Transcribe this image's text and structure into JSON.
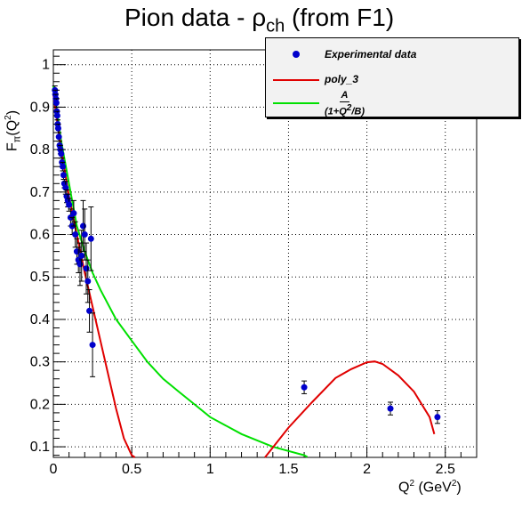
{
  "chart_data": {
    "type": "scatter",
    "title": "Pion data - ρ",
    "title_subscript": "ch",
    "title_suffix": " (from F1)",
    "xlabel": "Q",
    "xlabel_sup": "2",
    "xlabel_unit": " (GeV",
    "xlabel_unit_sup": "2",
    "xlabel_close": ")",
    "ylabel": "F",
    "ylabel_sub": "π",
    "ylabel_arg": "(Q",
    "ylabel_arg_sup": "2",
    "ylabel_close": ")",
    "xlim": [
      0,
      2.7
    ],
    "ylim": [
      0.075,
      1.035
    ],
    "xticks": [
      0,
      0.5,
      1,
      1.5,
      2,
      2.5
    ],
    "xtick_labels": [
      "0",
      "0.5",
      "1",
      "1.5",
      "2",
      "2.5"
    ],
    "yticks": [
      0.1,
      0.2,
      0.3,
      0.4,
      0.5,
      0.6,
      0.7,
      0.8,
      0.9,
      1.0
    ],
    "ytick_labels": [
      "0.1",
      "0.2",
      "0.3",
      "0.4",
      "0.5",
      "0.6",
      "0.7",
      "0.8",
      "0.9",
      "1"
    ],
    "grid": true,
    "legend_position": "top-right",
    "legend": {
      "data": "Experimental data",
      "poly": "poly_3",
      "fit_num": "A",
      "fit_den_prefix": "(1+Q",
      "fit_den_sup": "2",
      "fit_den_suffix": "/B)"
    },
    "colors": {
      "points": "#0000cc",
      "poly": "#e00000",
      "fit": "#00e000",
      "grid": "#000000"
    },
    "series": [
      {
        "type": "points",
        "x": [
          0.01,
          0.013,
          0.016,
          0.019,
          0.022,
          0.025,
          0.028,
          0.031,
          0.035,
          0.04,
          0.045,
          0.05,
          0.055,
          0.06,
          0.065,
          0.07,
          0.078,
          0.085,
          0.092,
          0.1,
          0.11,
          0.12,
          0.13,
          0.14,
          0.15,
          0.16,
          0.17,
          0.18,
          0.19,
          0.2,
          0.21,
          0.22,
          0.23,
          0.24,
          0.25,
          1.6,
          2.15,
          2.45
        ],
        "y": [
          0.94,
          0.93,
          0.92,
          0.91,
          0.89,
          0.88,
          0.86,
          0.85,
          0.83,
          0.81,
          0.8,
          0.79,
          0.77,
          0.76,
          0.74,
          0.72,
          0.71,
          0.69,
          0.68,
          0.67,
          0.64,
          0.62,
          0.65,
          0.6,
          0.56,
          0.54,
          0.53,
          0.55,
          0.62,
          0.6,
          0.52,
          0.49,
          0.42,
          0.59,
          0.34,
          0.24,
          0.19,
          0.17
        ],
        "err": [
          0.01,
          0.01,
          0.01,
          0.01,
          0.01,
          0.01,
          0.01,
          0.01,
          0.01,
          0.01,
          0.01,
          0.01,
          0.01,
          0.01,
          0.01,
          0.01,
          0.015,
          0.015,
          0.015,
          0.015,
          0.02,
          0.02,
          0.03,
          0.03,
          0.03,
          0.03,
          0.05,
          0.06,
          0.06,
          0.06,
          0.06,
          0.05,
          0.05,
          0.075,
          0.075,
          0.015,
          0.015,
          0.015
        ]
      },
      {
        "type": "line",
        "name": "poly_3",
        "x": [
          0.0,
          0.05,
          0.1,
          0.15,
          0.2,
          0.25,
          0.3,
          0.35,
          0.4,
          0.45,
          0.5,
          0.52,
          1.35,
          1.5,
          1.65,
          1.8,
          1.9,
          2.0,
          2.05,
          2.1,
          2.2,
          2.3,
          2.4,
          2.43
        ],
        "y": [
          0.93,
          0.8,
          0.69,
          0.6,
          0.51,
          0.43,
          0.35,
          0.27,
          0.19,
          0.12,
          0.08,
          0.075,
          0.075,
          0.145,
          0.205,
          0.262,
          0.283,
          0.299,
          0.301,
          0.295,
          0.268,
          0.23,
          0.17,
          0.13
        ]
      },
      {
        "type": "line",
        "name": "A/(1+Q^2/B)",
        "x": [
          0.0,
          0.05,
          0.1,
          0.15,
          0.2,
          0.25,
          0.3,
          0.4,
          0.5,
          0.6,
          0.7,
          0.8,
          0.9,
          1.0,
          1.1,
          1.2,
          1.3,
          1.4,
          1.5,
          1.6,
          1.62
        ],
        "y": [
          0.95,
          0.82,
          0.72,
          0.62,
          0.56,
          0.51,
          0.47,
          0.4,
          0.35,
          0.3,
          0.26,
          0.23,
          0.2,
          0.17,
          0.15,
          0.13,
          0.115,
          0.1,
          0.09,
          0.08,
          0.076
        ]
      }
    ]
  }
}
